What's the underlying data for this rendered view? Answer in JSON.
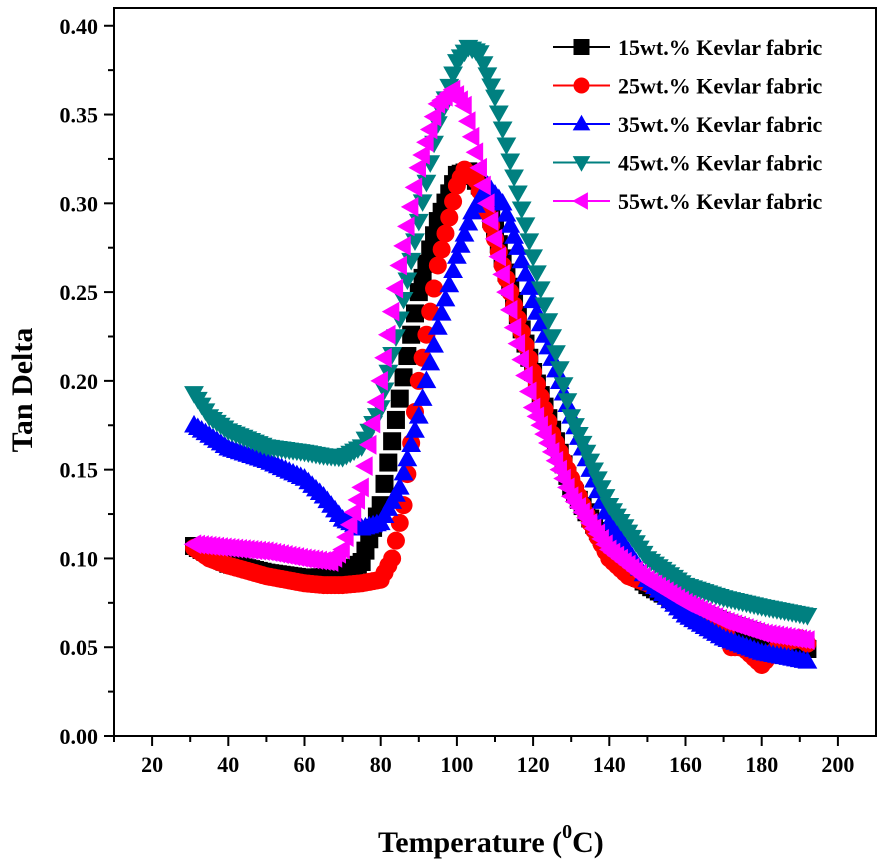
{
  "chart_data": {
    "type": "scatter",
    "title": "",
    "xlabel": "Temperature (",
    "xlabel_sup": "0",
    "xlabel_tail": "C)",
    "ylabel": "Tan Delta",
    "xlim": [
      10,
      210
    ],
    "ylim": [
      0.0,
      0.41
    ],
    "xticks": [
      20,
      40,
      60,
      80,
      100,
      120,
      140,
      160,
      180,
      200
    ],
    "xtick_labels": [
      "20",
      "40",
      "60",
      "80",
      "100",
      "120",
      "140",
      "160",
      "180",
      "200"
    ],
    "yticks": [
      0.0,
      0.05,
      0.1,
      0.15,
      0.2,
      0.25,
      0.3,
      0.35,
      0.4
    ],
    "ytick_labels": [
      "0.00",
      "0.05",
      "0.10",
      "0.15",
      "0.20",
      "0.25",
      "0.30",
      "0.35",
      "0.40"
    ],
    "legend_position": "top-right",
    "series": [
      {
        "name": "15wt.% Kevlar fabric",
        "color": "#000000",
        "marker": "square",
        "points": [
          [
            31,
            0.107
          ],
          [
            40,
            0.097
          ],
          [
            50,
            0.092
          ],
          [
            60,
            0.089
          ],
          [
            70,
            0.09
          ],
          [
            75,
            0.098
          ],
          [
            80,
            0.13
          ],
          [
            85,
            0.19
          ],
          [
            90,
            0.25
          ],
          [
            95,
            0.29
          ],
          [
            100,
            0.316
          ],
          [
            103,
            0.318
          ],
          [
            106,
            0.31
          ],
          [
            110,
            0.285
          ],
          [
            115,
            0.245
          ],
          [
            120,
            0.205
          ],
          [
            130,
            0.14
          ],
          [
            140,
            0.105
          ],
          [
            150,
            0.085
          ],
          [
            160,
            0.073
          ],
          [
            170,
            0.064
          ],
          [
            180,
            0.057
          ],
          [
            192,
            0.049
          ]
        ]
      },
      {
        "name": "25wt.% Kevlar fabric",
        "color": "#ff0000",
        "marker": "circle",
        "points": [
          [
            31,
            0.106
          ],
          [
            35,
            0.1
          ],
          [
            40,
            0.096
          ],
          [
            50,
            0.09
          ],
          [
            55,
            0.088
          ],
          [
            60,
            0.086
          ],
          [
            65,
            0.085
          ],
          [
            70,
            0.085
          ],
          [
            75,
            0.086
          ],
          [
            80,
            0.088
          ],
          [
            83,
            0.1
          ],
          [
            86,
            0.13
          ],
          [
            90,
            0.2
          ],
          [
            95,
            0.265
          ],
          [
            100,
            0.31
          ],
          [
            102,
            0.319
          ],
          [
            105,
            0.313
          ],
          [
            108,
            0.295
          ],
          [
            112,
            0.265
          ],
          [
            116,
            0.235
          ],
          [
            120,
            0.205
          ],
          [
            125,
            0.17
          ],
          [
            130,
            0.145
          ],
          [
            135,
            0.12
          ],
          [
            140,
            0.1
          ],
          [
            145,
            0.09
          ],
          [
            150,
            0.086
          ],
          [
            155,
            0.08
          ],
          [
            160,
            0.075
          ],
          [
            165,
            0.07
          ],
          [
            170,
            0.062
          ],
          [
            172,
            0.05
          ],
          [
            175,
            0.05
          ],
          [
            180,
            0.04
          ],
          [
            185,
            0.052
          ],
          [
            190,
            0.055
          ],
          [
            192,
            0.052
          ]
        ]
      },
      {
        "name": "35wt.% Kevlar fabric",
        "color": "#0000ff",
        "marker": "triangle-up",
        "points": [
          [
            31,
            0.175
          ],
          [
            40,
            0.162
          ],
          [
            50,
            0.155
          ],
          [
            60,
            0.145
          ],
          [
            65,
            0.135
          ],
          [
            70,
            0.122
          ],
          [
            75,
            0.117
          ],
          [
            80,
            0.12
          ],
          [
            85,
            0.14
          ],
          [
            90,
            0.18
          ],
          [
            95,
            0.23
          ],
          [
            100,
            0.27
          ],
          [
            104,
            0.295
          ],
          [
            108,
            0.31
          ],
          [
            112,
            0.3
          ],
          [
            116,
            0.275
          ],
          [
            120,
            0.245
          ],
          [
            130,
            0.18
          ],
          [
            140,
            0.12
          ],
          [
            150,
            0.088
          ],
          [
            160,
            0.068
          ],
          [
            170,
            0.055
          ],
          [
            180,
            0.047
          ],
          [
            192,
            0.042
          ]
        ]
      },
      {
        "name": "45wt.% Kevlar fabric",
        "color": "#008080",
        "marker": "triangle-down",
        "points": [
          [
            31,
            0.193
          ],
          [
            35,
            0.18
          ],
          [
            40,
            0.172
          ],
          [
            50,
            0.163
          ],
          [
            60,
            0.16
          ],
          [
            65,
            0.158
          ],
          [
            70,
            0.157
          ],
          [
            75,
            0.163
          ],
          [
            80,
            0.185
          ],
          [
            85,
            0.235
          ],
          [
            90,
            0.29
          ],
          [
            95,
            0.345
          ],
          [
            100,
            0.38
          ],
          [
            103,
            0.388
          ],
          [
            106,
            0.385
          ],
          [
            110,
            0.36
          ],
          [
            115,
            0.315
          ],
          [
            120,
            0.27
          ],
          [
            125,
            0.225
          ],
          [
            130,
            0.18
          ],
          [
            140,
            0.13
          ],
          [
            150,
            0.1
          ],
          [
            160,
            0.085
          ],
          [
            170,
            0.078
          ],
          [
            180,
            0.073
          ],
          [
            192,
            0.068
          ]
        ]
      },
      {
        "name": "55wt.% Kevlar fabric",
        "color": "#ff00ff",
        "marker": "triangle-left",
        "points": [
          [
            31,
            0.108
          ],
          [
            40,
            0.106
          ],
          [
            50,
            0.104
          ],
          [
            60,
            0.1
          ],
          [
            67,
            0.098
          ],
          [
            70,
            0.105
          ],
          [
            75,
            0.14
          ],
          [
            80,
            0.2
          ],
          [
            85,
            0.265
          ],
          [
            90,
            0.32
          ],
          [
            95,
            0.356
          ],
          [
            99,
            0.364
          ],
          [
            102,
            0.355
          ],
          [
            106,
            0.32
          ],
          [
            110,
            0.28
          ],
          [
            115,
            0.23
          ],
          [
            120,
            0.185
          ],
          [
            130,
            0.135
          ],
          [
            140,
            0.105
          ],
          [
            150,
            0.088
          ],
          [
            160,
            0.075
          ],
          [
            170,
            0.065
          ],
          [
            180,
            0.058
          ],
          [
            192,
            0.054
          ]
        ]
      }
    ]
  }
}
